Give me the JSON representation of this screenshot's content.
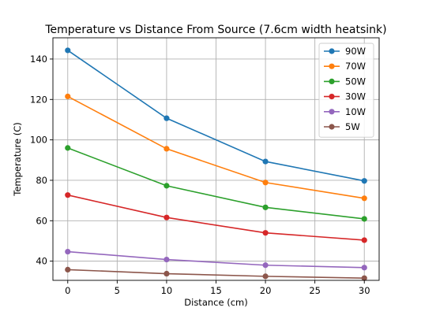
{
  "chart_data": {
    "type": "line",
    "title": "Temperature vs Distance From Source (7.6cm width heatsink)",
    "xlabel": "Distance (cm)",
    "ylabel": "Temperature (C)",
    "xlim": [
      -1.5,
      31.5
    ],
    "ylim": [
      30.5,
      150.5
    ],
    "xticks": [
      0,
      5,
      10,
      15,
      20,
      25,
      30
    ],
    "yticks": [
      40,
      60,
      80,
      100,
      120,
      140
    ],
    "grid": true,
    "legend_position": "top-right",
    "x": [
      0,
      10,
      20,
      30
    ],
    "series": [
      {
        "name": "90W",
        "color": "#1f77b4",
        "values": [
          144.3,
          110.7,
          89.3,
          79.7
        ]
      },
      {
        "name": "70W",
        "color": "#ff7f0e",
        "values": [
          121.5,
          95.6,
          78.9,
          71.1
        ]
      },
      {
        "name": "50W",
        "color": "#2ca02c",
        "values": [
          96.0,
          77.3,
          66.6,
          60.9
        ]
      },
      {
        "name": "30W",
        "color": "#d62728",
        "values": [
          72.7,
          61.6,
          54.0,
          50.4
        ]
      },
      {
        "name": "10W",
        "color": "#9467bd",
        "values": [
          44.7,
          40.8,
          38.0,
          36.8
        ]
      },
      {
        "name": "5W",
        "color": "#8c564b",
        "values": [
          35.8,
          33.8,
          32.5,
          31.6
        ]
      }
    ]
  }
}
